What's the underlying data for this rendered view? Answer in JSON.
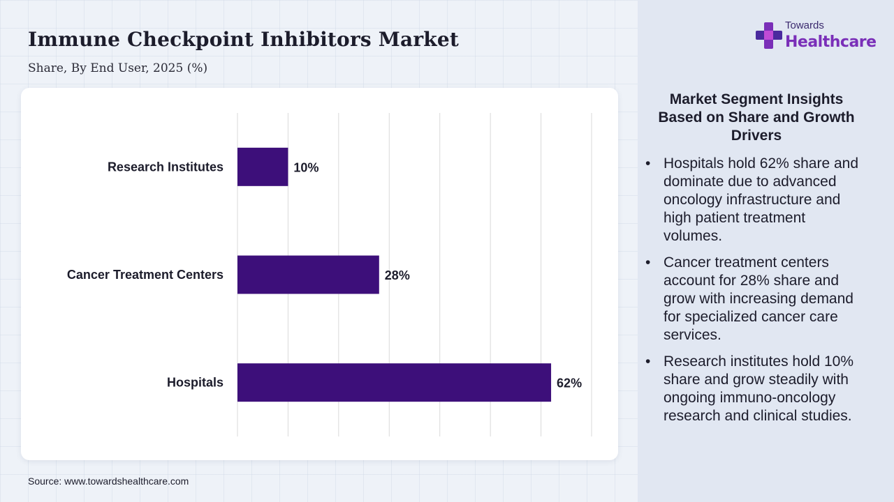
{
  "header": {
    "title": "Immune Checkpoint Inhibitors Market",
    "subtitle": "Share, By End User, 2025 (%)"
  },
  "logo": {
    "line1": "Towards",
    "line2": "Healthcare",
    "icon": "cross-plus-icon"
  },
  "source": "Source: www.towardshealthcare.com",
  "insights": {
    "title": "Market Segment Insights Based on Share and Growth Drivers",
    "items": [
      "Hospitals hold 62% share and dominate due to advanced oncology infrastructure and high patient treatment volumes.",
      "Cancer treatment centers account for 28% share and grow with increasing demand for specialized cancer care services.",
      "Research institutes hold 10% share and grow steadily with ongoing immuno-oncology research and clinical studies."
    ]
  },
  "colors": {
    "bar": "#3d0f7a",
    "gridline": "#d9d9d9",
    "accent": "#7a2fb8"
  },
  "chart_data": {
    "type": "bar",
    "orientation": "horizontal",
    "categories": [
      "Research Institutes",
      "Cancer Treatment Centers",
      "Hospitals"
    ],
    "values": [
      10,
      28,
      62
    ],
    "value_labels": [
      "10%",
      "28%",
      "62%"
    ],
    "xlim": [
      0,
      70
    ],
    "grid": true,
    "title": "",
    "xlabel": "",
    "ylabel": ""
  }
}
